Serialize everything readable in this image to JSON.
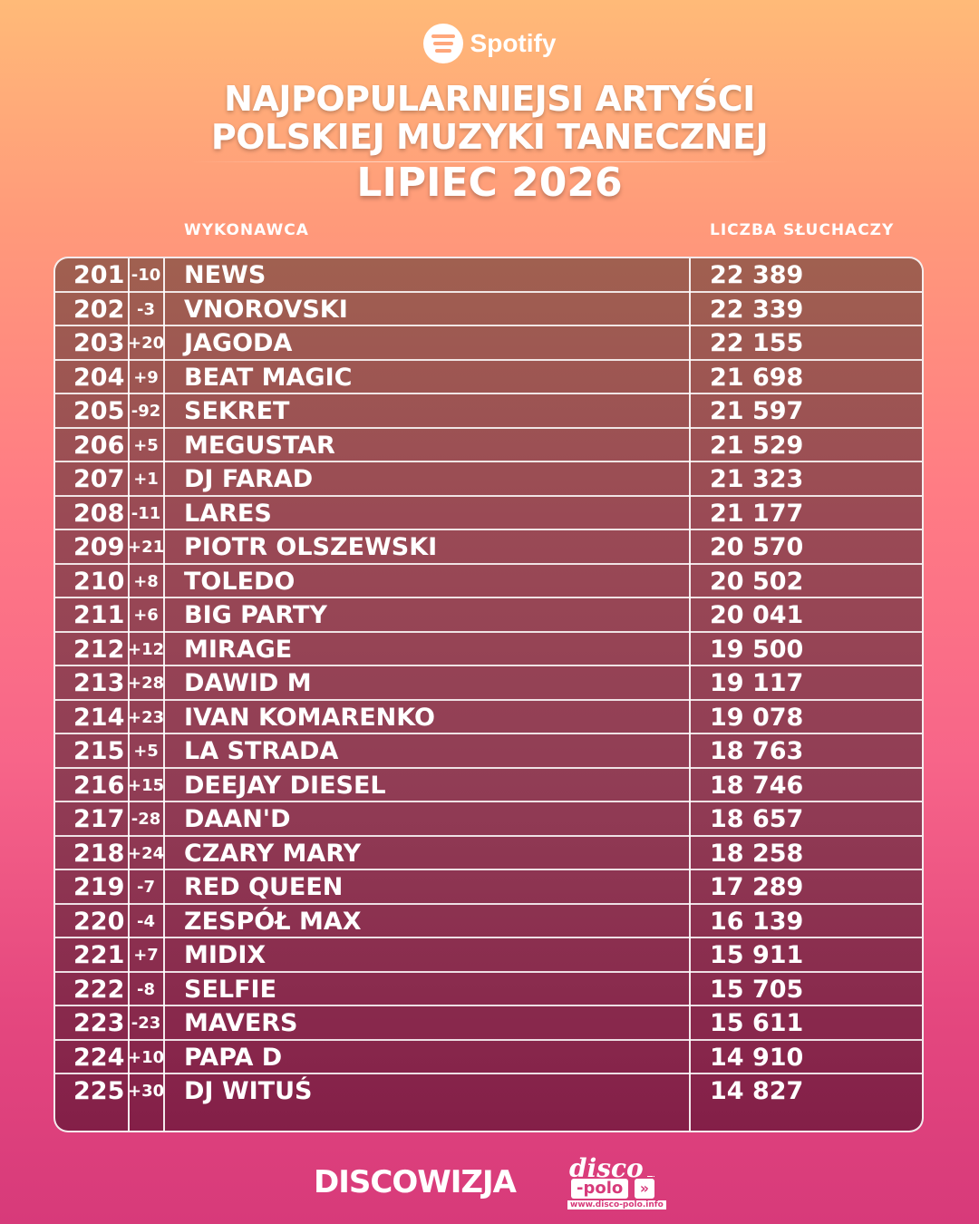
{
  "header": {
    "brand": "Spotify",
    "brand_icon": "spotify-logo-icon",
    "title_line1": "NAJPOPULARNIEJSI ARTYŚCI",
    "title_line2": "POLSKIEJ MUZYKI TANECZNEJ",
    "subtitle": "LIPIEC 2026"
  },
  "columns": {
    "artist": "WYKONAWCA",
    "listeners": "LICZBA SŁUCHACZY"
  },
  "rows": [
    {
      "rank": "201",
      "change": "-10",
      "artist": "NEWS",
      "listeners": "22 389"
    },
    {
      "rank": "202",
      "change": "-3",
      "artist": "VNOROVSKI",
      "listeners": "22 339"
    },
    {
      "rank": "203",
      "change": "+20",
      "artist": "JAGODA",
      "listeners": "22 155"
    },
    {
      "rank": "204",
      "change": "+9",
      "artist": "BEAT MAGIC",
      "listeners": "21 698"
    },
    {
      "rank": "205",
      "change": "-92",
      "artist": "SEKRET",
      "listeners": "21 597"
    },
    {
      "rank": "206",
      "change": "+5",
      "artist": "MEGUSTAR",
      "listeners": "21 529"
    },
    {
      "rank": "207",
      "change": "+1",
      "artist": "DJ FARAD",
      "listeners": "21 323"
    },
    {
      "rank": "208",
      "change": "-11",
      "artist": "LARES",
      "listeners": "21 177"
    },
    {
      "rank": "209",
      "change": "+21",
      "artist": "PIOTR OLSZEWSKI",
      "listeners": "20 570"
    },
    {
      "rank": "210",
      "change": "+8",
      "artist": "TOLEDO",
      "listeners": "20 502"
    },
    {
      "rank": "211",
      "change": "+6",
      "artist": "BIG PARTY",
      "listeners": "20 041"
    },
    {
      "rank": "212",
      "change": "+12",
      "artist": "MIRAGE",
      "listeners": "19 500"
    },
    {
      "rank": "213",
      "change": "+28",
      "artist": "DAWID M",
      "listeners": "19 117"
    },
    {
      "rank": "214",
      "change": "+23",
      "artist": "IVAN KOMARENKO",
      "listeners": "19 078"
    },
    {
      "rank": "215",
      "change": "+5",
      "artist": "LA STRADA",
      "listeners": "18 763"
    },
    {
      "rank": "216",
      "change": "+15",
      "artist": "DEEJAY DIESEL",
      "listeners": "18 746"
    },
    {
      "rank": "217",
      "change": "-28",
      "artist": "DAAN'D",
      "listeners": "18 657"
    },
    {
      "rank": "218",
      "change": "+24",
      "artist": "CZARY MARY",
      "listeners": "18 258"
    },
    {
      "rank": "219",
      "change": "-7",
      "artist": "RED QUEEN",
      "listeners": "17 289"
    },
    {
      "rank": "220",
      "change": "-4",
      "artist": "ZESPÓŁ MAX",
      "listeners": "16 139"
    },
    {
      "rank": "221",
      "change": "+7",
      "artist": "MIDIX",
      "listeners": "15 911"
    },
    {
      "rank": "222",
      "change": "-8",
      "artist": "SELFIE",
      "listeners": "15 705"
    },
    {
      "rank": "223",
      "change": "-23",
      "artist": "MAVERS",
      "listeners": "15 611"
    },
    {
      "rank": "224",
      "change": "+10",
      "artist": "PAPA D",
      "listeners": "14 910"
    },
    {
      "rank": "225",
      "change": "+30",
      "artist": "DJ WITUŚ",
      "listeners": "14 827"
    }
  ],
  "footer": {
    "discowizja": "DISCOWIZJA",
    "dp_disco": "disco",
    "dp_polo": "-polo",
    "dp_arrows": "»",
    "dp_info": "info",
    "dp_url": "www.disco-polo.info"
  }
}
